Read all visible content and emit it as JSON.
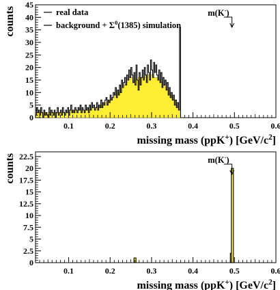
{
  "chart_data": [
    {
      "type": "histogram",
      "xlabel": "missing mass (ppK",
      "xlabel_sup": "+",
      "xlabel_unit": ") [GeV/c",
      "xlabel_unit_sup": "2",
      "xlabel_end": "]",
      "ylabel": "counts",
      "xlim": [
        0.02,
        0.6
      ],
      "ylim": [
        0,
        45
      ],
      "xticks": [
        "0.1",
        "0.2",
        "0.3",
        "0.4",
        "0.5",
        "0.6"
      ],
      "yticks": [
        "0",
        "5",
        "10",
        "15",
        "20",
        "25",
        "30",
        "35",
        "40",
        "45"
      ],
      "legend": {
        "position": "top-left",
        "entries": [
          {
            "label": "real data"
          },
          {
            "label": "background + Σ",
            "sup": "0",
            "suffix": "(1385) simulation"
          }
        ]
      },
      "annotation": {
        "text": "m(K",
        "sup": "-",
        "end": ")",
        "x": 0.494
      },
      "bin_width": 0.0025,
      "x_start": 0.02,
      "real_data": [
        1,
        4,
        2,
        3,
        1,
        4,
        2,
        0,
        3,
        1,
        2,
        1,
        0,
        4,
        1,
        3,
        2,
        1,
        3,
        0,
        2,
        4,
        1,
        2,
        3,
        1,
        4,
        2,
        1,
        3,
        2,
        4,
        1,
        3,
        5,
        2,
        3,
        2,
        4,
        3,
        2,
        4,
        3,
        5,
        2,
        4,
        3,
        2,
        5,
        3,
        4,
        2,
        5,
        3,
        6,
        4,
        5,
        3,
        4,
        6,
        3,
        5,
        4,
        7,
        4,
        6,
        5,
        7,
        8,
        5,
        7,
        6,
        9,
        7,
        8,
        10,
        9,
        12,
        8,
        11,
        9,
        13,
        10,
        15,
        12,
        14,
        16,
        13,
        17,
        15,
        19,
        16,
        20,
        17,
        14,
        18,
        13,
        21,
        15,
        11,
        18,
        13,
        16,
        19,
        15,
        20,
        17,
        14,
        21,
        18,
        15,
        23,
        19,
        16,
        22,
        18,
        21,
        17,
        15,
        19,
        14,
        18,
        12,
        16,
        13,
        15,
        11,
        14,
        9,
        12,
        8,
        10,
        7,
        9,
        5,
        7,
        4,
        6,
        3,
        36,
        0
      ],
      "simulation": [
        1,
        2,
        2,
        2,
        2,
        2,
        2,
        1,
        2,
        2,
        2,
        2,
        2,
        2,
        2,
        2,
        2,
        2,
        2,
        2,
        2,
        2,
        2,
        2,
        2,
        2,
        2,
        2,
        2,
        2,
        2,
        2,
        2,
        3,
        3,
        3,
        3,
        3,
        3,
        3,
        3,
        3,
        3,
        3,
        3,
        3,
        3,
        3,
        3,
        3,
        3,
        3,
        3,
        4,
        4,
        4,
        4,
        4,
        4,
        4,
        4,
        5,
        5,
        5,
        5,
        5,
        6,
        6,
        6,
        6,
        7,
        7,
        7,
        8,
        8,
        8,
        9,
        9,
        10,
        10,
        10,
        11,
        11,
        12,
        12,
        13,
        13,
        14,
        14,
        15,
        15,
        16,
        16,
        16,
        15,
        15,
        15,
        15,
        15,
        16,
        16,
        16,
        16,
        16,
        16,
        16,
        17,
        17,
        17,
        17,
        17,
        17,
        17,
        17,
        16,
        16,
        16,
        16,
        15,
        15,
        15,
        14,
        14,
        13,
        13,
        12,
        12,
        11,
        11,
        10,
        9,
        9,
        8,
        7,
        7,
        6,
        5,
        4,
        3,
        36,
        0
      ]
    },
    {
      "type": "histogram",
      "xlabel": "missing mass (ppK",
      "xlabel_sup": "+",
      "xlabel_unit": ") [GeV/c",
      "xlabel_unit_sup": "2",
      "xlabel_end": "]",
      "ylabel": "counts",
      "xlim": [
        0.02,
        0.6
      ],
      "ylim": [
        0,
        23.5
      ],
      "xticks": [
        "0.1",
        "0.2",
        "0.3",
        "0.4",
        "0.5",
        "0.6"
      ],
      "yticks": [
        "0",
        "2.5",
        "5",
        "7.5",
        "10",
        "12.5",
        "15",
        "17.5",
        "20",
        "22.5"
      ],
      "annotation": {
        "text": "m(K",
        "sup": "-",
        "end": ")",
        "x": 0.494
      },
      "bars": [
        {
          "x": 0.26,
          "real": 1,
          "simulation": 1
        },
        {
          "x": 0.4925,
          "real": 2,
          "simulation": 2
        },
        {
          "x": 0.495,
          "real": 20,
          "simulation": 20
        }
      ]
    }
  ]
}
